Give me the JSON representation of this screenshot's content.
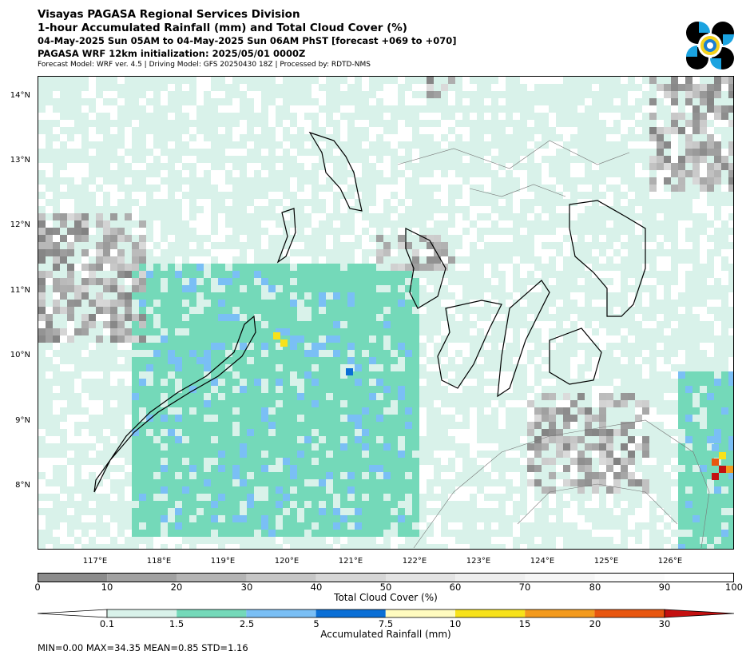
{
  "header": {
    "org": "Visayas PAGASA Regional Services Division",
    "product": "1-hour Accumulated Rainfall (mm) and Total Cloud Cover (%)",
    "period": "04-May-2025 Sun 05AM to 04-May-2025 Sun 06AM PhST [forecast +069 to +070]",
    "init": "PAGASA WRF 12km initialization: 2025/05/01 0000Z",
    "meta": "Forecast Model: WRF ver. 4.5 | Driving Model: GFS 20250430 18Z | Processed by: RDTD-NMS"
  },
  "map": {
    "lat_labels": [
      "14°N",
      "13°N",
      "12°N",
      "11°N",
      "10°N",
      "9°N",
      "8°N"
    ],
    "lon_labels": [
      "117°E",
      "118°E",
      "119°E",
      "120°E",
      "121°E",
      "122°E",
      "123°E",
      "124°E",
      "125°E",
      "126°E"
    ],
    "land_color": "#ffffff",
    "coast_color": "#000000",
    "rain_light_color": "#d9f2ea",
    "rain_mod_color": "#74d9b9"
  },
  "cloud_colorbar": {
    "title": "Total Cloud Cover (%)",
    "ticks": [
      "0",
      "10",
      "20",
      "30",
      "40",
      "50",
      "60",
      "70",
      "80",
      "90",
      "100"
    ],
    "colors": [
      "#8c8c8c",
      "#a1a1a1",
      "#b4b4b4",
      "#c6c6c6",
      "#d6d6d6",
      "#e3e3e3",
      "#eeeeee",
      "#f5f5f5",
      "#fbfbfb",
      "#ffffff"
    ]
  },
  "rain_colorbar": {
    "title": "Accumulated Rainfall (mm)",
    "ticks": [
      "0.1",
      "1.5",
      "2.5",
      "5",
      "7.5",
      "10",
      "15",
      "20",
      "30"
    ],
    "colors": [
      "#ffffff",
      "#d9f2ea",
      "#74d9b9",
      "#7abff5",
      "#0a6fd6",
      "#fffbbf",
      "#f7e21a",
      "#f39a1d",
      "#e8560f",
      "#c41010"
    ]
  },
  "stats": "MIN=0.00   MAX=34.35   MEAN=0.85   STD=1.16"
}
